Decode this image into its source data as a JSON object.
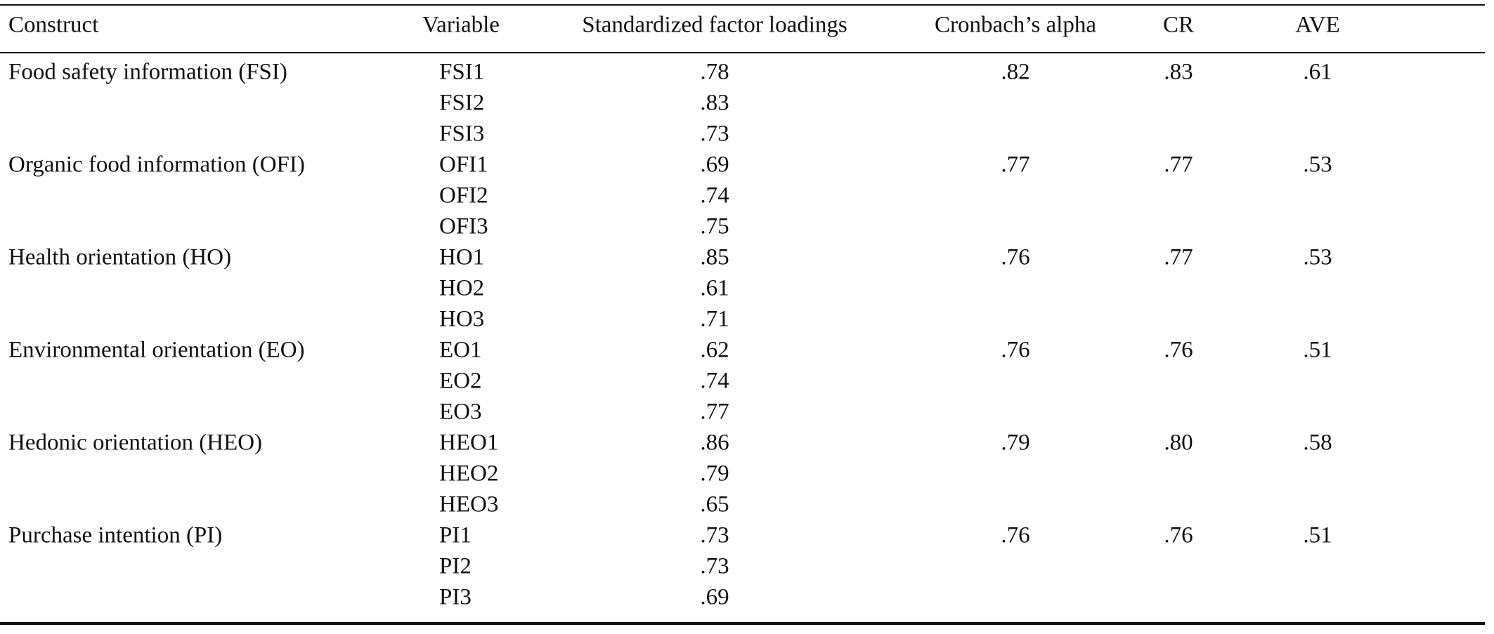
{
  "table": {
    "header": [
      "Construct",
      "Variable",
      "Standardized factor loadings",
      "Cronbach’s alpha",
      "CR",
      "AVE"
    ],
    "groups": [
      {
        "construct": "Food safety information (FSI)",
        "alpha": ".82",
        "cr": ".83",
        "ave": ".61",
        "items": [
          {
            "variable": "FSI1",
            "loading": ".78"
          },
          {
            "variable": "FSI2",
            "loading": ".83"
          },
          {
            "variable": "FSI3",
            "loading": ".73"
          }
        ]
      },
      {
        "construct": "Organic food information (OFI)",
        "alpha": ".77",
        "cr": ".77",
        "ave": ".53",
        "items": [
          {
            "variable": "OFI1",
            "loading": ".69"
          },
          {
            "variable": "OFI2",
            "loading": ".74"
          },
          {
            "variable": "OFI3",
            "loading": ".75"
          }
        ]
      },
      {
        "construct": "Health orientation (HO)",
        "alpha": ".76",
        "cr": ".77",
        "ave": ".53",
        "items": [
          {
            "variable": "HO1",
            "loading": ".85"
          },
          {
            "variable": "HO2",
            "loading": ".61"
          },
          {
            "variable": "HO3",
            "loading": ".71"
          }
        ]
      },
      {
        "construct": "Environmental orientation (EO)",
        "alpha": ".76",
        "cr": ".76",
        "ave": ".51",
        "items": [
          {
            "variable": "EO1",
            "loading": ".62"
          },
          {
            "variable": "EO2",
            "loading": ".74"
          },
          {
            "variable": "EO3",
            "loading": ".77"
          }
        ]
      },
      {
        "construct": "Hedonic orientation (HEO)",
        "alpha": ".79",
        "cr": ".80",
        "ave": ".58",
        "items": [
          {
            "variable": "HEO1",
            "loading": ".86"
          },
          {
            "variable": "HEO2",
            "loading": ".79"
          },
          {
            "variable": "HEO3",
            "loading": ".65"
          }
        ]
      },
      {
        "construct": "Purchase intention (PI)",
        "alpha": ".76",
        "cr": ".76",
        "ave": ".51",
        "items": [
          {
            "variable": "PI1",
            "loading": ".73"
          },
          {
            "variable": "PI2",
            "loading": ".73"
          },
          {
            "variable": "PI3",
            "loading": ".69"
          }
        ]
      }
    ]
  }
}
